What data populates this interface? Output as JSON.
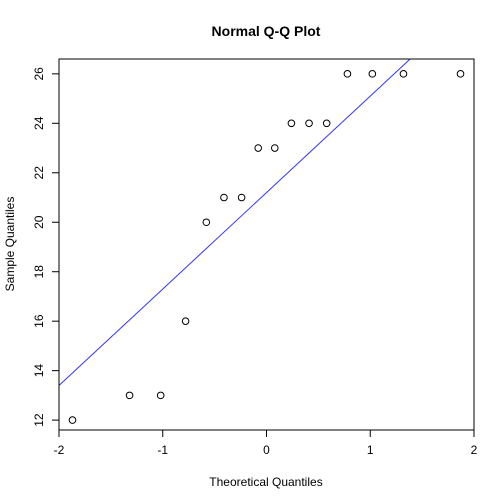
{
  "chart_data": {
    "type": "scatter",
    "title": "Normal Q-Q Plot",
    "xlabel": "Theoretical Quantiles",
    "ylabel": "Sample Quantiles",
    "xlim": [
      -2.0,
      2.0
    ],
    "ylim": [
      11.6,
      26.6
    ],
    "x_ticks": [
      -2,
      -1,
      0,
      1,
      2
    ],
    "y_ticks": [
      12,
      14,
      16,
      18,
      20,
      22,
      24,
      26
    ],
    "grid": false,
    "legend": "none",
    "points": [
      {
        "x": -1.87,
        "y": 12
      },
      {
        "x": -1.32,
        "y": 13
      },
      {
        "x": -1.02,
        "y": 13
      },
      {
        "x": -0.78,
        "y": 16
      },
      {
        "x": -0.58,
        "y": 20
      },
      {
        "x": -0.41,
        "y": 21
      },
      {
        "x": -0.24,
        "y": 21
      },
      {
        "x": -0.08,
        "y": 23
      },
      {
        "x": 0.08,
        "y": 23
      },
      {
        "x": 0.24,
        "y": 24
      },
      {
        "x": 0.41,
        "y": 24
      },
      {
        "x": 0.58,
        "y": 24
      },
      {
        "x": 0.78,
        "y": 26
      },
      {
        "x": 1.02,
        "y": 26
      },
      {
        "x": 1.32,
        "y": 26
      },
      {
        "x": 1.87,
        "y": 26
      }
    ],
    "reference_line": {
      "intercept": 21.2,
      "slope": 3.9
    },
    "colors": {
      "points": "#000000",
      "reference_line": "#3333ff",
      "frame": "#000000"
    }
  }
}
